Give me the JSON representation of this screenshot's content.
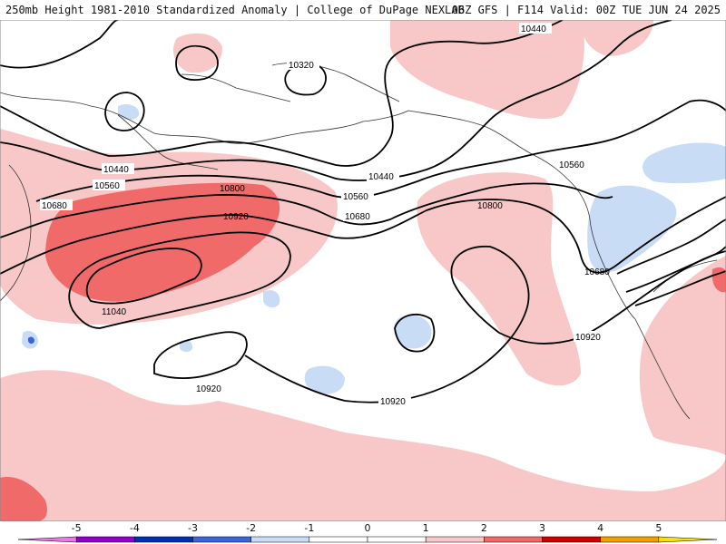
{
  "header": {
    "left": "250mb Height 1981-2010 Standardized Anomaly | College of DuPage NEXLAB",
    "right": "06Z GFS | F114 Valid: 00Z TUE JUN 24 2025"
  },
  "colors": {
    "anom_pos_1": "#f8c8c8",
    "anom_pos_2": "#f06a6a",
    "anom_neg_1": "#c8dcf6",
    "anom_neg_2": "#3a64d8",
    "contour": "#000000",
    "coast": "#333333"
  },
  "contour_labels": [
    "10440",
    "10320",
    "10440",
    "10560",
    "10680",
    "10800",
    "10920",
    "11040",
    "10440",
    "10560",
    "10680",
    "10800",
    "10560",
    "10680",
    "10920",
    "10920",
    "10920"
  ],
  "colorbar": {
    "ticks": [
      "-5",
      "-4",
      "-3",
      "-2",
      "-1",
      "0",
      "1",
      "2",
      "3",
      "4",
      "5"
    ],
    "colors": [
      "#e87ae8",
      "#9000c8",
      "#0030b0",
      "#3a64d8",
      "#c8dcf6",
      "#ffffff",
      "#ffffff",
      "#f8c8c8",
      "#f06a6a",
      "#c80000",
      "#f0a000",
      "#f8e000"
    ]
  }
}
